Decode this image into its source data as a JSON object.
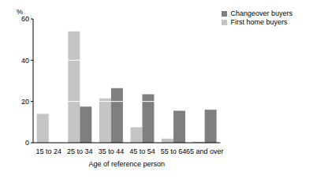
{
  "chart_data": {
    "type": "bar",
    "y_label": "%",
    "x_label": "Age of reference person",
    "categories": [
      "15 to 24",
      "25 to 34",
      "35 to 44",
      "45 to 54",
      "55 to 64",
      "65 and over"
    ],
    "series": [
      {
        "name": "First home buyers",
        "color": "#c4c4c4",
        "values": [
          14,
          54,
          21.5,
          7.5,
          2,
          0.5
        ]
      },
      {
        "name": "Changeover buyers",
        "color": "#7f7f7f",
        "values": [
          0,
          17.5,
          26.5,
          23.5,
          15.5,
          16
        ]
      }
    ],
    "ylim": [
      0,
      60
    ],
    "yticks": [
      0,
      20,
      40,
      60
    ],
    "grid": true,
    "legend": "upper right"
  }
}
